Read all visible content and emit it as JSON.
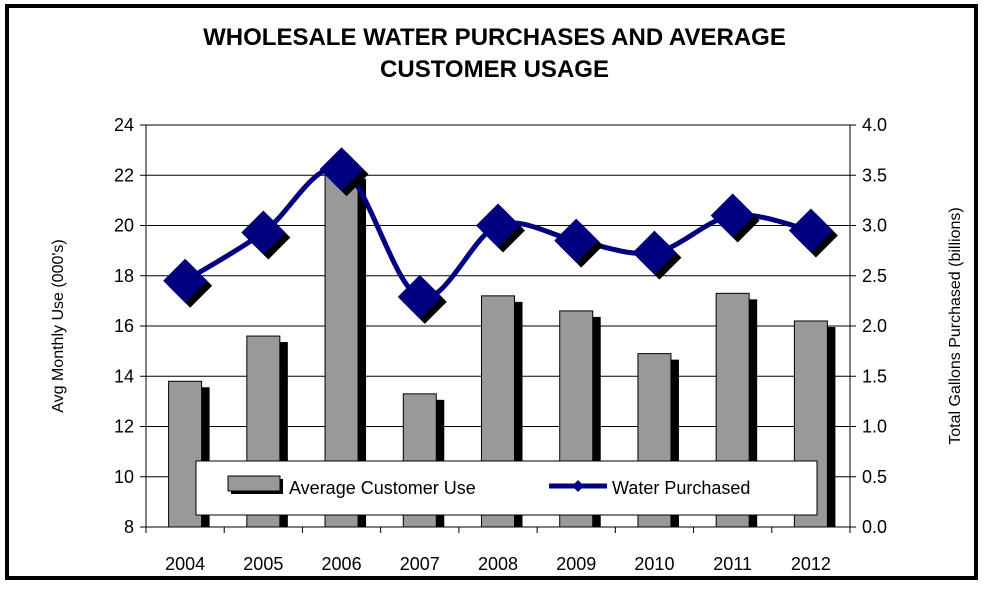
{
  "chart_data": {
    "type": "bar",
    "title_line1": "WHOLESALE WATER PURCHASES AND AVERAGE",
    "title_line2": "CUSTOMER USAGE",
    "ylabel_left": "Avg Monthly Use (000's)",
    "ylabel_right": "Total Gallons Purchased (billions)",
    "categories": [
      "2004",
      "2005",
      "2006",
      "2007",
      "2008",
      "2009",
      "2010",
      "2011",
      "2012"
    ],
    "ylim_left": [
      8,
      24
    ],
    "ylim_right": [
      0.0,
      4.0
    ],
    "yticks_left": [
      "24",
      "22",
      "20",
      "18",
      "16",
      "14",
      "12",
      "10",
      "8"
    ],
    "yticks_right": [
      "4.0",
      "3.5",
      "3.0",
      "2.5",
      "2.0",
      "1.5",
      "1.0",
      "0.5",
      "0.0"
    ],
    "series": [
      {
        "name": "Average Customer Use",
        "type": "bar",
        "axis": "left",
        "color": "#999999",
        "values": [
          13.8,
          15.6,
          22.1,
          13.3,
          17.2,
          16.6,
          14.9,
          17.3,
          16.2
        ]
      },
      {
        "name": "Water Purchased",
        "type": "line",
        "axis": "right",
        "color": "#000080",
        "values": [
          2.45,
          2.93,
          3.56,
          2.29,
          3.0,
          2.85,
          2.73,
          3.1,
          2.95
        ]
      }
    ],
    "grid": true,
    "legend_position": "bottom-center"
  }
}
